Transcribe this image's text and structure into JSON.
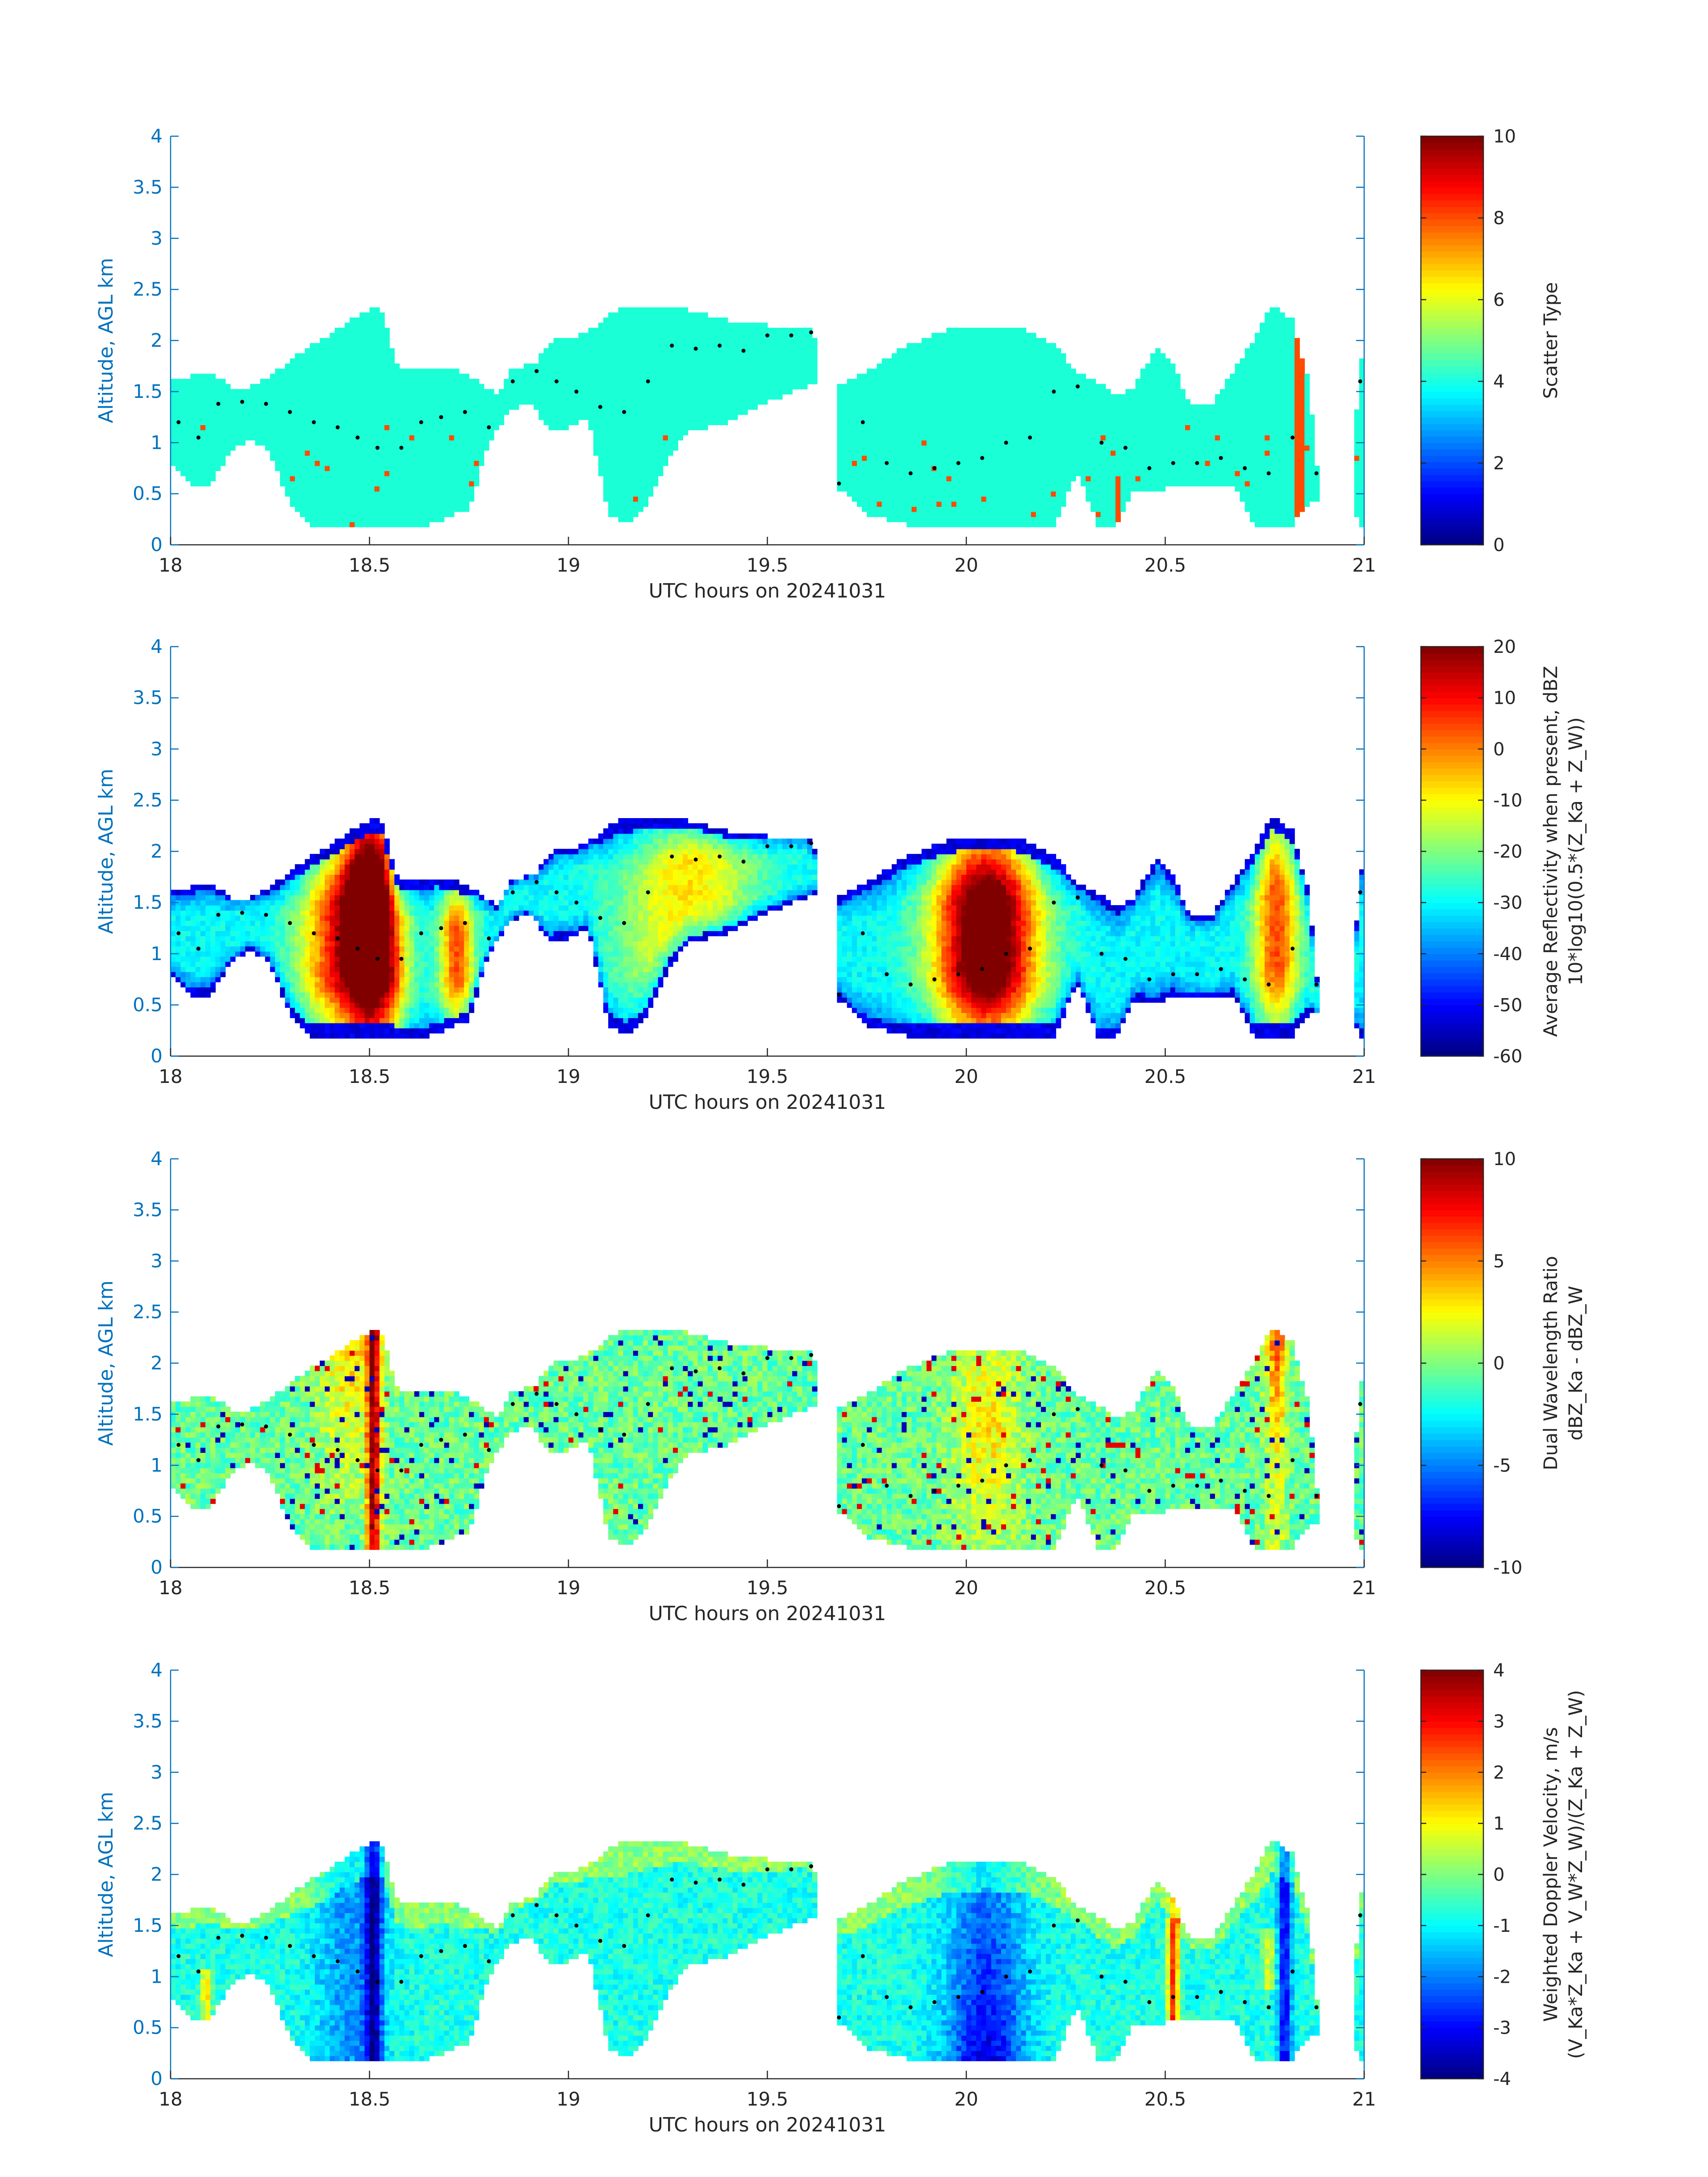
{
  "chart_data": [
    {
      "type": "heatmap",
      "title": "",
      "xlabel": "UTC hours on 20241031",
      "ylabel": "Altitude, AGL km",
      "xlim": [
        18,
        21
      ],
      "ylim": [
        0,
        4
      ],
      "xticks": [
        "18",
        "18.5",
        "19",
        "19.5",
        "20",
        "20.5",
        "21"
      ],
      "yticks": [
        "0",
        "0.5",
        "1",
        "1.5",
        "2",
        "2.5",
        "3",
        "3.5",
        "4"
      ],
      "colorbar": {
        "label_lines": [
          "Scatter Type"
        ],
        "clim": [
          0,
          10
        ],
        "ticks": [
          "0",
          "2",
          "4",
          "6",
          "8",
          "10"
        ]
      },
      "colormap": "jet",
      "field": "scatter_type",
      "dominant_value": 4,
      "secondary_value": 8.2
    },
    {
      "type": "heatmap",
      "title": "",
      "xlabel": "UTC hours on 20241031",
      "ylabel": "Altitude, AGL km",
      "xlim": [
        18,
        21
      ],
      "ylim": [
        0,
        4
      ],
      "xticks": [
        "18",
        "18.5",
        "19",
        "19.5",
        "20",
        "20.5",
        "21"
      ],
      "yticks": [
        "0",
        "0.5",
        "1",
        "1.5",
        "2",
        "2.5",
        "3",
        "3.5",
        "4"
      ],
      "colorbar": {
        "label_lines": [
          "Average Reflectivity when present, dBZ",
          "10*log10(0.5*(Z_Ka + Z_W))"
        ],
        "clim": [
          -60,
          20
        ],
        "ticks": [
          "-60",
          "-50",
          "-40",
          "-30",
          "-20",
          "-10",
          "0",
          "10",
          "20"
        ]
      },
      "colormap": "jet",
      "field": "reflectivity"
    },
    {
      "type": "heatmap",
      "title": "",
      "xlabel": "UTC hours on 20241031",
      "ylabel": "Altitude, AGL km",
      "xlim": [
        18,
        21
      ],
      "ylim": [
        0,
        4
      ],
      "xticks": [
        "18",
        "18.5",
        "19",
        "19.5",
        "20",
        "20.5",
        "21"
      ],
      "yticks": [
        "0",
        "0.5",
        "1",
        "1.5",
        "2",
        "2.5",
        "3",
        "3.5",
        "4"
      ],
      "colorbar": {
        "label_lines": [
          "Dual Wavelength Ratio",
          "dBZ_Ka - dBZ_W"
        ],
        "clim": [
          -10,
          10
        ],
        "ticks": [
          "-10",
          "-5",
          "0",
          "5",
          "10"
        ]
      },
      "colormap": "jet",
      "field": "dwr"
    },
    {
      "type": "heatmap",
      "title": "",
      "xlabel": "UTC hours on 20241031",
      "ylabel": "Altitude, AGL km",
      "xlim": [
        18,
        21
      ],
      "ylim": [
        0,
        4
      ],
      "xticks": [
        "18",
        "18.5",
        "19",
        "19.5",
        "20",
        "20.5",
        "21"
      ],
      "yticks": [
        "0",
        "0.5",
        "1",
        "1.5",
        "2",
        "2.5",
        "3",
        "3.5",
        "4"
      ],
      "colorbar": {
        "label_lines": [
          "Weighted Doppler Velocity, m/s",
          "(V_Ka*Z_Ka + V_W*Z_W)/(Z_Ka + Z_W)"
        ],
        "clim": [
          -4,
          4
        ],
        "ticks": [
          "-4",
          "-3",
          "-2",
          "-1",
          "0",
          "1",
          "2",
          "3",
          "4"
        ]
      },
      "colormap": "jet",
      "field": "velocity"
    }
  ],
  "cloud_top_km": [
    [
      18.0,
      1.6
    ],
    [
      18.05,
      1.65
    ],
    [
      18.1,
      1.7
    ],
    [
      18.15,
      1.55
    ],
    [
      18.2,
      1.55
    ],
    [
      18.25,
      1.65
    ],
    [
      18.3,
      1.8
    ],
    [
      18.35,
      1.95
    ],
    [
      18.4,
      2.05
    ],
    [
      18.45,
      2.2
    ],
    [
      18.5,
      2.3
    ],
    [
      18.53,
      2.3
    ],
    [
      18.57,
      1.75
    ],
    [
      18.62,
      1.7
    ],
    [
      18.67,
      1.75
    ],
    [
      18.72,
      1.7
    ],
    [
      18.78,
      1.6
    ],
    [
      18.82,
      1.45
    ],
    [
      18.85,
      1.7
    ],
    [
      18.92,
      1.8
    ],
    [
      18.97,
      2.05
    ],
    [
      19.02,
      2.05
    ],
    [
      19.07,
      2.15
    ],
    [
      19.12,
      2.3
    ],
    [
      19.2,
      2.35
    ],
    [
      19.3,
      2.3
    ],
    [
      19.4,
      2.2
    ],
    [
      19.5,
      2.15
    ],
    [
      19.6,
      2.15
    ],
    [
      19.62,
      2.0
    ],
    [
      19.66,
      0.0
    ],
    [
      19.68,
      1.55
    ],
    [
      19.75,
      1.7
    ],
    [
      19.85,
      1.95
    ],
    [
      19.95,
      2.1
    ],
    [
      20.05,
      2.15
    ],
    [
      20.15,
      2.1
    ],
    [
      20.22,
      1.95
    ],
    [
      20.28,
      1.7
    ],
    [
      20.33,
      1.6
    ],
    [
      20.38,
      1.45
    ],
    [
      20.42,
      1.55
    ],
    [
      20.48,
      1.95
    ],
    [
      20.52,
      1.75
    ],
    [
      20.56,
      1.4
    ],
    [
      20.62,
      1.4
    ],
    [
      20.67,
      1.7
    ],
    [
      20.72,
      2.0
    ],
    [
      20.77,
      2.35
    ],
    [
      20.82,
      2.2
    ],
    [
      20.86,
      1.6
    ],
    [
      20.9,
      0.0
    ],
    [
      20.96,
      0.0
    ],
    [
      20.99,
      1.85
    ],
    [
      21.0,
      1.85
    ]
  ],
  "cloud_base_km": [
    [
      18.0,
      0.8
    ],
    [
      18.05,
      0.6
    ],
    [
      18.1,
      0.6
    ],
    [
      18.15,
      0.9
    ],
    [
      18.2,
      1.05
    ],
    [
      18.25,
      0.9
    ],
    [
      18.3,
      0.4
    ],
    [
      18.35,
      0.2
    ],
    [
      18.45,
      0.2
    ],
    [
      18.55,
      0.2
    ],
    [
      18.65,
      0.2
    ],
    [
      18.75,
      0.35
    ],
    [
      18.8,
      1.0
    ],
    [
      18.85,
      1.3
    ],
    [
      18.9,
      1.4
    ],
    [
      18.95,
      1.15
    ],
    [
      19.0,
      1.15
    ],
    [
      19.05,
      1.25
    ],
    [
      19.1,
      0.3
    ],
    [
      19.15,
      0.2
    ],
    [
      19.2,
      0.4
    ],
    [
      19.25,
      0.85
    ],
    [
      19.3,
      1.1
    ],
    [
      19.4,
      1.2
    ],
    [
      19.5,
      1.4
    ],
    [
      19.6,
      1.55
    ],
    [
      19.62,
      1.6
    ],
    [
      19.68,
      0.55
    ],
    [
      19.75,
      0.3
    ],
    [
      19.85,
      0.2
    ],
    [
      19.95,
      0.2
    ],
    [
      20.05,
      0.2
    ],
    [
      20.15,
      0.2
    ],
    [
      20.22,
      0.2
    ],
    [
      20.28,
      0.7
    ],
    [
      20.33,
      0.2
    ],
    [
      20.38,
      0.2
    ],
    [
      20.42,
      0.55
    ],
    [
      20.48,
      0.5
    ],
    [
      20.52,
      0.6
    ],
    [
      20.56,
      0.55
    ],
    [
      20.62,
      0.55
    ],
    [
      20.67,
      0.6
    ],
    [
      20.72,
      0.2
    ],
    [
      20.77,
      0.2
    ],
    [
      20.82,
      0.2
    ],
    [
      20.86,
      0.4
    ],
    [
      20.9,
      0.4
    ],
    [
      20.96,
      0.4
    ],
    [
      20.99,
      0.2
    ],
    [
      21.0,
      0.2
    ]
  ],
  "marker_line_km": [
    [
      18.02,
      1.2
    ],
    [
      18.07,
      1.05
    ],
    [
      18.12,
      1.38
    ],
    [
      18.18,
      1.4
    ],
    [
      18.24,
      1.38
    ],
    [
      18.3,
      1.3
    ],
    [
      18.36,
      1.2
    ],
    [
      18.42,
      1.15
    ],
    [
      18.47,
      1.05
    ],
    [
      18.52,
      0.95
    ],
    [
      18.58,
      0.95
    ],
    [
      18.63,
      1.2
    ],
    [
      18.68,
      1.25
    ],
    [
      18.74,
      1.3
    ],
    [
      18.8,
      1.15
    ],
    [
      18.86,
      1.6
    ],
    [
      18.92,
      1.7
    ],
    [
      18.97,
      1.6
    ],
    [
      19.02,
      1.5
    ],
    [
      19.08,
      1.35
    ],
    [
      19.14,
      1.3
    ],
    [
      19.2,
      1.6
    ],
    [
      19.26,
      1.95
    ],
    [
      19.32,
      1.92
    ],
    [
      19.38,
      1.95
    ],
    [
      19.44,
      1.9
    ],
    [
      19.5,
      2.05
    ],
    [
      19.56,
      2.05
    ],
    [
      19.61,
      2.08
    ],
    [
      19.68,
      0.6
    ],
    [
      19.74,
      1.2
    ],
    [
      19.8,
      0.8
    ],
    [
      19.86,
      0.7
    ],
    [
      19.92,
      0.75
    ],
    [
      19.98,
      0.8
    ],
    [
      20.04,
      0.85
    ],
    [
      20.1,
      1.0
    ],
    [
      20.16,
      1.05
    ],
    [
      20.22,
      1.5
    ],
    [
      20.28,
      1.55
    ],
    [
      20.34,
      1.0
    ],
    [
      20.4,
      0.95
    ],
    [
      20.46,
      0.75
    ],
    [
      20.52,
      0.8
    ],
    [
      20.58,
      0.8
    ],
    [
      20.64,
      0.85
    ],
    [
      20.7,
      0.75
    ],
    [
      20.76,
      0.7
    ],
    [
      20.82,
      1.05
    ],
    [
      20.88,
      0.7
    ],
    [
      20.99,
      1.6
    ]
  ]
}
